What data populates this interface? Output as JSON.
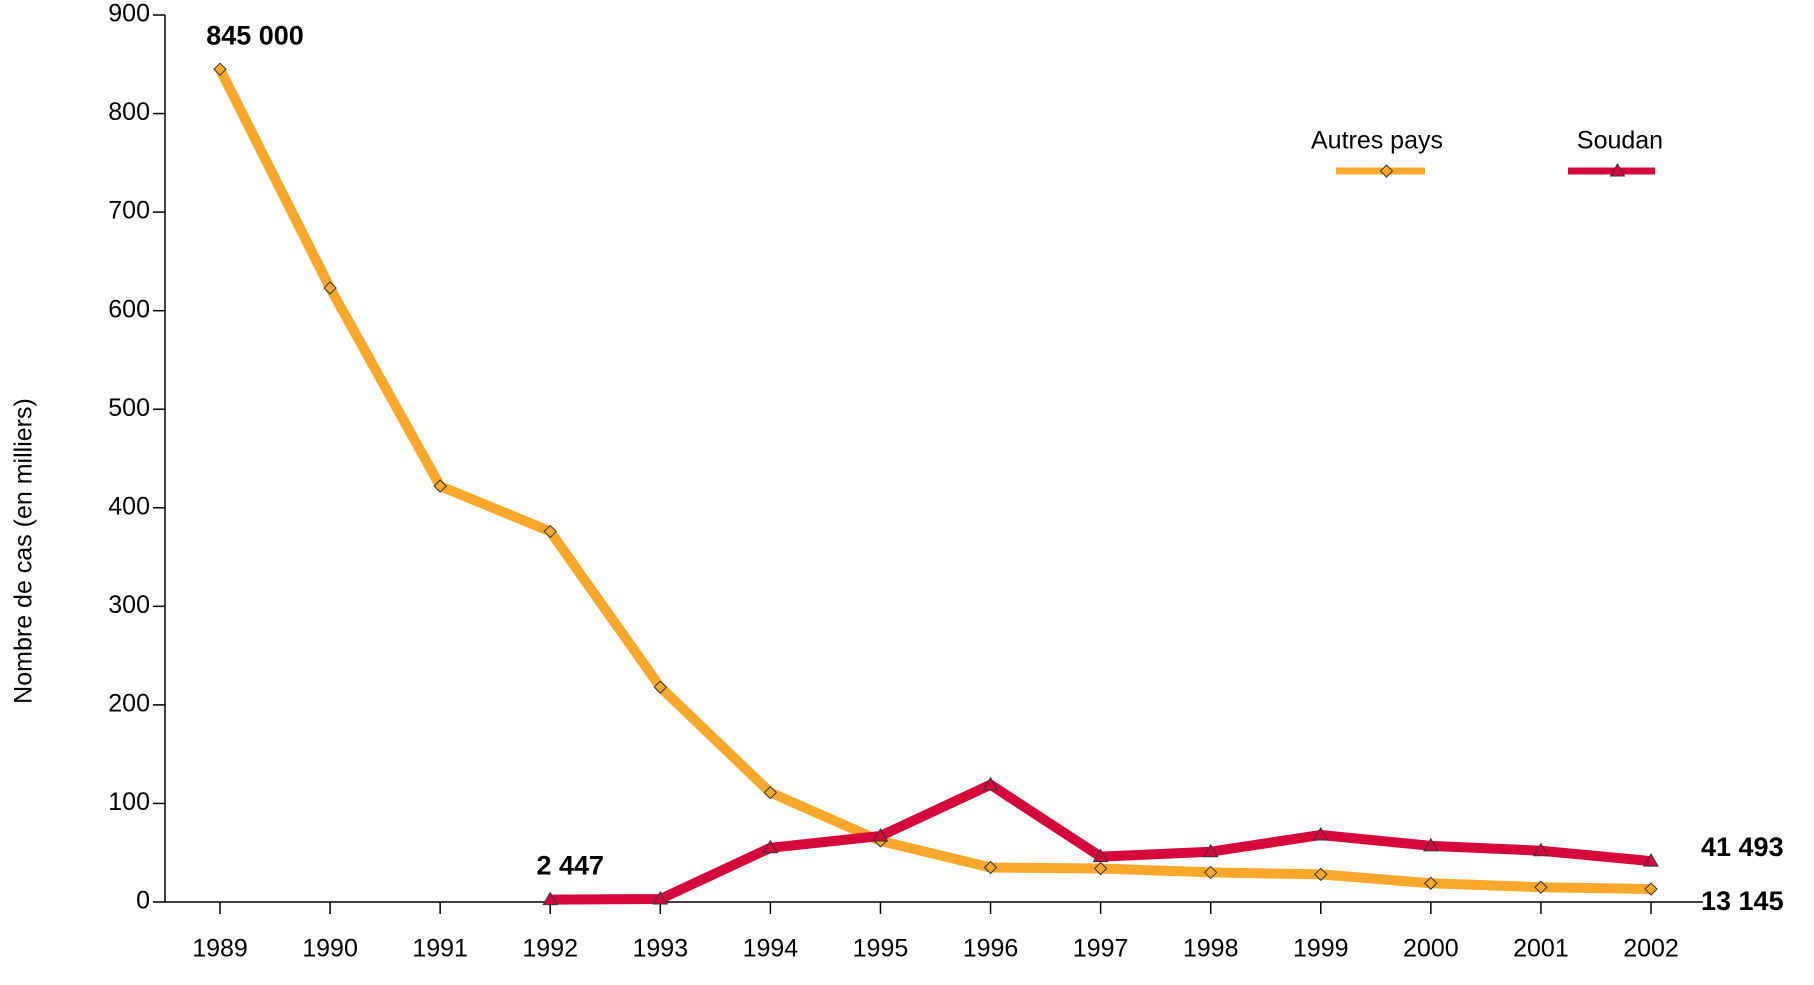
{
  "chart_data": {
    "type": "line",
    "y_label": "Nombre de cas (en milliers)",
    "categories": [
      "1989",
      "1990",
      "1991",
      "1992",
      "1993",
      "1994",
      "1995",
      "1996",
      "1997",
      "1998",
      "1999",
      "2000",
      "2001",
      "2002"
    ],
    "series": [
      {
        "name": "Autres pays",
        "color": "#f9a82b",
        "marker": "diamond",
        "values": [
          845,
          623,
          422,
          376,
          218,
          111,
          62,
          35,
          34,
          30,
          28,
          19,
          15,
          13.145
        ],
        "value_labels": [
          "845 000",
          null,
          null,
          null,
          null,
          null,
          null,
          null,
          null,
          null,
          null,
          null,
          null,
          "13 145"
        ]
      },
      {
        "name": "Soudan",
        "color": "#d6083b",
        "marker": "triangle",
        "values": [
          null,
          null,
          null,
          2.447,
          3,
          55,
          67,
          119,
          46,
          51,
          68,
          57,
          52,
          41.493
        ],
        "value_labels": [
          null,
          null,
          null,
          "2 447",
          null,
          null,
          null,
          null,
          null,
          null,
          null,
          null,
          null,
          "41 493"
        ]
      }
    ],
    "ylim": [
      0,
      900
    ],
    "yticks": [
      0,
      100,
      200,
      300,
      400,
      500,
      600,
      700,
      800,
      900
    ]
  }
}
